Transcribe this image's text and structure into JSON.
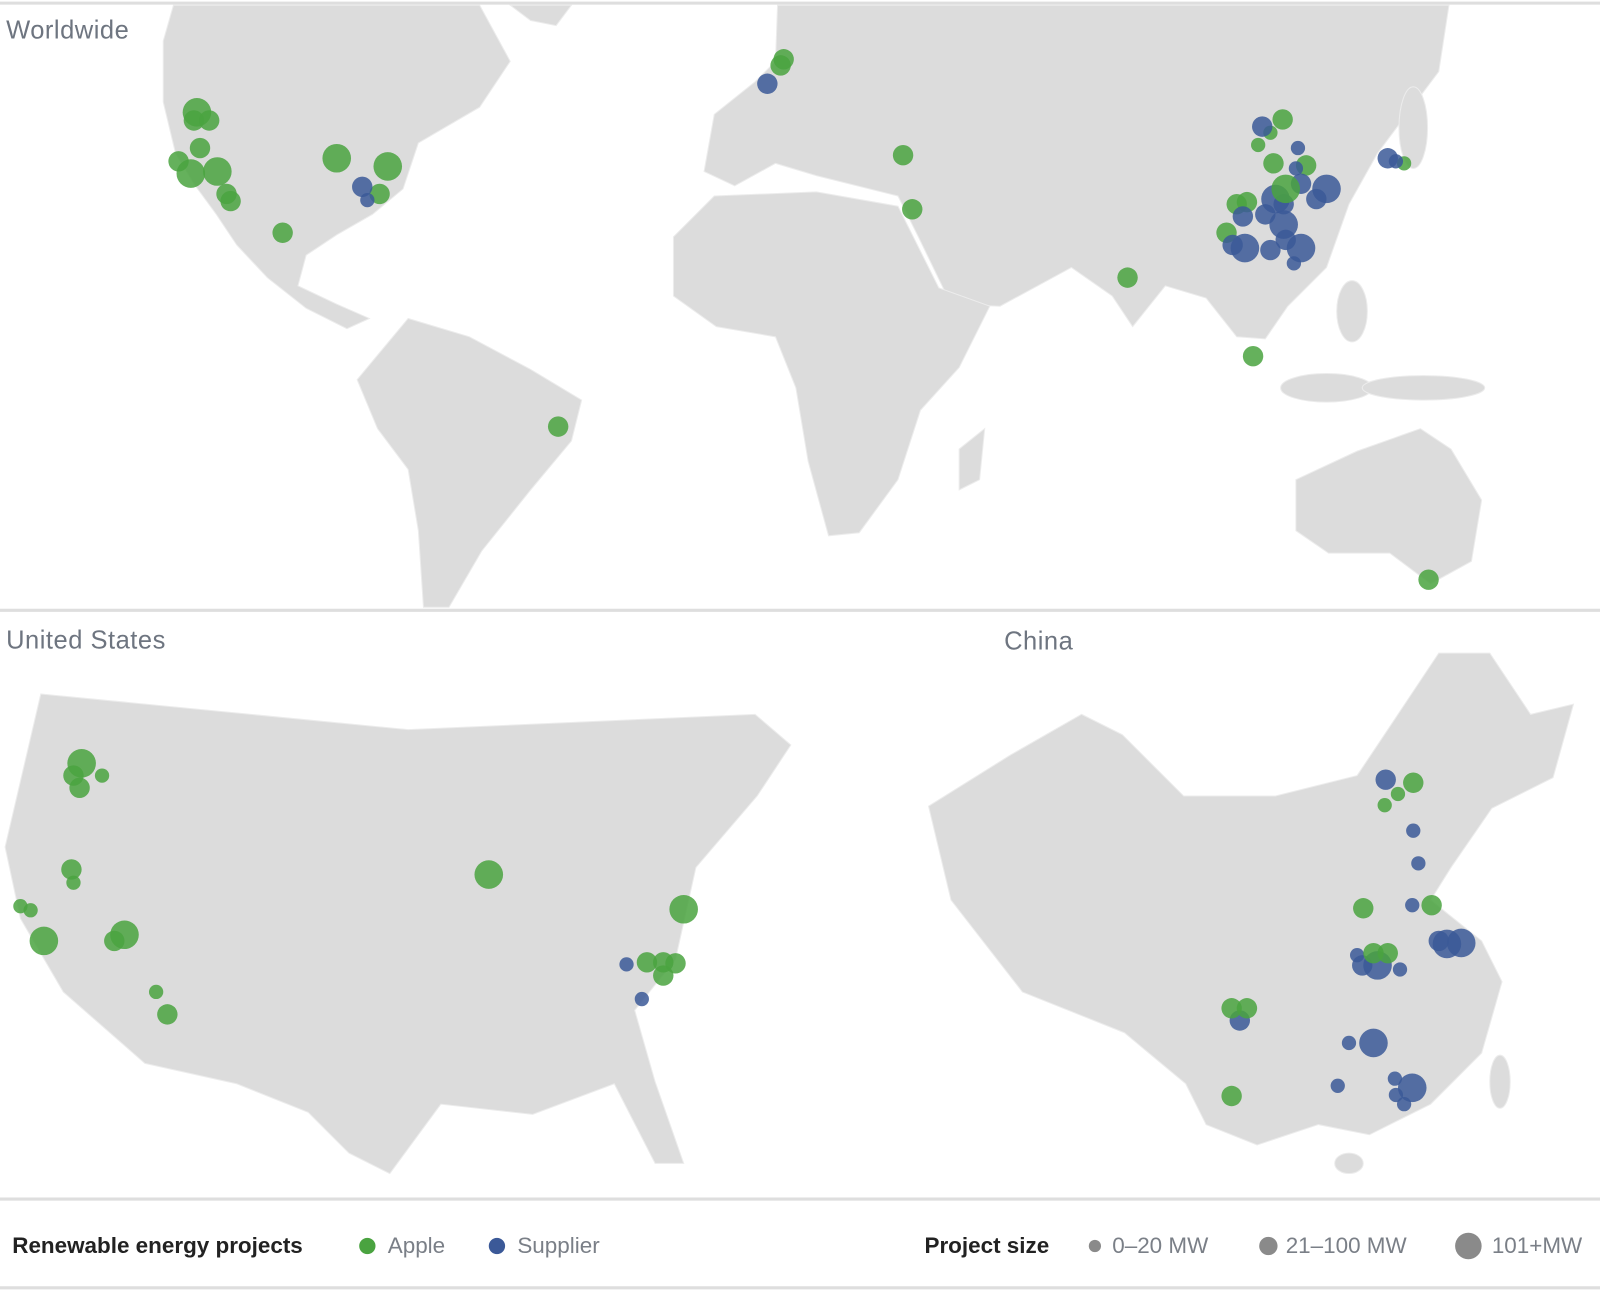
{
  "maps": [
    {
      "title": "Worldwide"
    },
    {
      "title": "United States"
    },
    {
      "title": "China"
    }
  ],
  "legend": {
    "projects": {
      "title": "Renewable energy projects",
      "items": [
        {
          "label": "Apple",
          "color": "#4aa340"
        },
        {
          "label": "Supplier",
          "color": "#3b5998"
        }
      ]
    },
    "size": {
      "title": "Project size",
      "items": [
        "0–20 MW",
        "21–100 MW",
        "101+MW"
      ]
    }
  }
}
